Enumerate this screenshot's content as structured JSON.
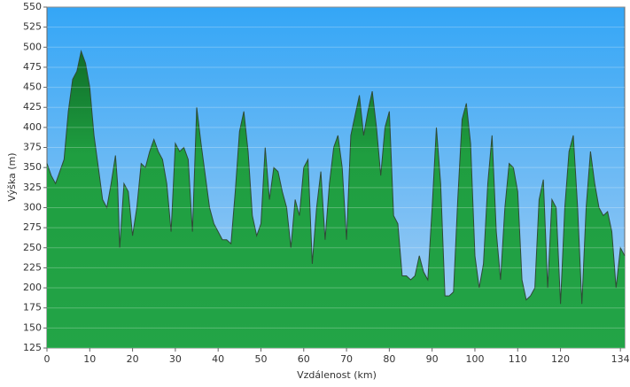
{
  "chart_data": {
    "type": "area",
    "ylabel": "Výška (m)",
    "xlabel": "Vzdálenost  (km)",
    "x": [
      0,
      1,
      2,
      3,
      4,
      5,
      6,
      7,
      8,
      9,
      10,
      11,
      12,
      13,
      14,
      15,
      16,
      16.5,
      17,
      18,
      19,
      20,
      21,
      22,
      23,
      24,
      25,
      26,
      27,
      28,
      29,
      30,
      31,
      32,
      33,
      34,
      35,
      36,
      37,
      38,
      39,
      40,
      41,
      42,
      43,
      44,
      45,
      46,
      47,
      48,
      49,
      50,
      51,
      52,
      53,
      54,
      55,
      56,
      57,
      58,
      59,
      60,
      61,
      62,
      63,
      64,
      65,
      66,
      67,
      68,
      69,
      70,
      71,
      72,
      73,
      74,
      75,
      76,
      77,
      78,
      79,
      80,
      81,
      82,
      83,
      84,
      85,
      86,
      87,
      88,
      89,
      90,
      91,
      92,
      93,
      94,
      95,
      96,
      97,
      98,
      99,
      100,
      101,
      102,
      103,
      104,
      105,
      106,
      107,
      108,
      109,
      110,
      111,
      112,
      113,
      114,
      115,
      116,
      117,
      118,
      119,
      120,
      121,
      122,
      123,
      124,
      125,
      126,
      127,
      128,
      129,
      130,
      131,
      132,
      133,
      134,
      135
    ],
    "values": [
      355,
      340,
      330,
      345,
      360,
      420,
      460,
      470,
      495,
      480,
      450,
      390,
      350,
      310,
      300,
      330,
      365,
      330,
      250,
      330,
      320,
      265,
      300,
      355,
      350,
      370,
      385,
      370,
      360,
      330,
      270,
      380,
      370,
      375,
      360,
      270,
      425,
      380,
      340,
      300,
      280,
      270,
      260,
      260,
      255,
      320,
      395,
      420,
      370,
      290,
      265,
      280,
      375,
      310,
      350,
      345,
      320,
      300,
      250,
      310,
      290,
      350,
      360,
      230,
      300,
      345,
      260,
      330,
      375,
      390,
      350,
      260,
      390,
      415,
      440,
      390,
      420,
      445,
      400,
      340,
      400,
      420,
      290,
      280,
      215,
      215,
      210,
      215,
      240,
      220,
      210,
      300,
      400,
      330,
      190,
      190,
      195,
      310,
      410,
      430,
      380,
      240,
      200,
      230,
      330,
      390,
      270,
      210,
      300,
      355,
      350,
      320,
      210,
      185,
      190,
      200,
      310,
      335,
      200,
      310,
      300,
      180,
      300,
      370,
      390,
      300,
      180,
      300,
      370,
      330,
      300,
      290,
      295,
      270,
      200,
      250,
      240
    ],
    "color": "#1f9e40",
    "line_color": "#2f4a35",
    "xlim": [
      0,
      135
    ],
    "xticks": [
      0,
      10,
      20,
      30,
      40,
      50,
      60,
      70,
      80,
      90,
      100,
      110,
      120,
      134
    ],
    "ylim": [
      125,
      550
    ],
    "yticks": [
      125,
      150,
      175,
      200,
      225,
      250,
      275,
      300,
      325,
      350,
      375,
      400,
      425,
      450,
      475,
      500,
      525,
      550
    ],
    "grid": true
  }
}
